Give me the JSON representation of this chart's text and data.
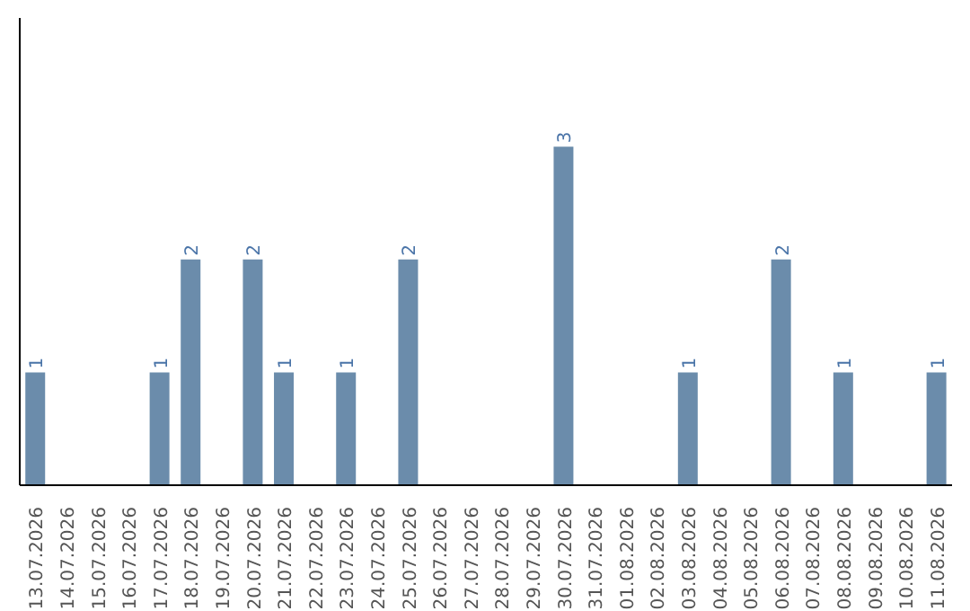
{
  "chart_data": {
    "type": "bar",
    "categories": [
      "13.07.2026",
      "14.07.2026",
      "15.07.2026",
      "16.07.2026",
      "17.07.2026",
      "18.07.2026",
      "19.07.2026",
      "20.07.2026",
      "21.07.2026",
      "22.07.2026",
      "23.07.2026",
      "24.07.2026",
      "25.07.2026",
      "26.07.2026",
      "27.07.2026",
      "28.07.2026",
      "29.07.2026",
      "30.07.2026",
      "31.07.2026",
      "01.08.2026",
      "02.08.2026",
      "03.08.2026",
      "04.08.2026",
      "05.08.2026",
      "06.08.2026",
      "07.08.2026",
      "08.08.2026",
      "09.08.2026",
      "10.08.2026",
      "11.08.2026"
    ],
    "values": [
      1,
      0,
      0,
      0,
      1,
      2,
      0,
      2,
      1,
      0,
      1,
      0,
      2,
      0,
      0,
      0,
      0,
      3,
      0,
      0,
      0,
      1,
      0,
      0,
      2,
      0,
      1,
      0,
      0,
      1
    ],
    "value_labels": [
      "1",
      null,
      null,
      null,
      "1",
      "2",
      null,
      "2",
      "1",
      null,
      "1",
      null,
      "2",
      null,
      null,
      null,
      null,
      "3",
      null,
      null,
      null,
      "1",
      null,
      null,
      "2",
      null,
      "1",
      null,
      null,
      "1"
    ],
    "color": "#6b8cab",
    "grid": false,
    "legend": false
  }
}
